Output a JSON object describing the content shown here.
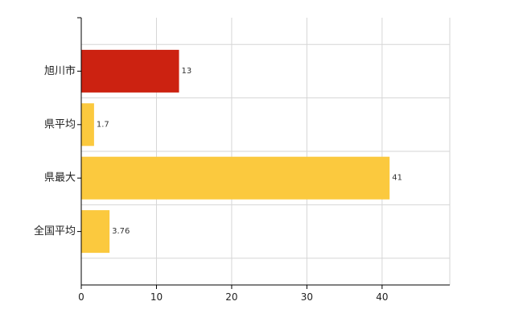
{
  "chart_data": {
    "type": "bar",
    "orientation": "horizontal",
    "categories": [
      "旭川市",
      "県平均",
      "県最大",
      "全国平均"
    ],
    "values": [
      13,
      1.7,
      41,
      3.76
    ],
    "value_labels": [
      "13",
      "1.7",
      "41",
      "3.76"
    ],
    "bar_colors": [
      "#cc2211",
      "#fbc93e",
      "#fbc93e",
      "#fbc93e"
    ],
    "xlim": [
      0,
      49
    ],
    "x_ticks": [
      0,
      10,
      20,
      30,
      40
    ],
    "grid": true,
    "title": "",
    "xlabel": "",
    "ylabel": ""
  },
  "colors": {
    "highlight": "#cc2211",
    "default_bar": "#fbc93e",
    "grid": "#d6d6d6",
    "axis": "#000000"
  }
}
